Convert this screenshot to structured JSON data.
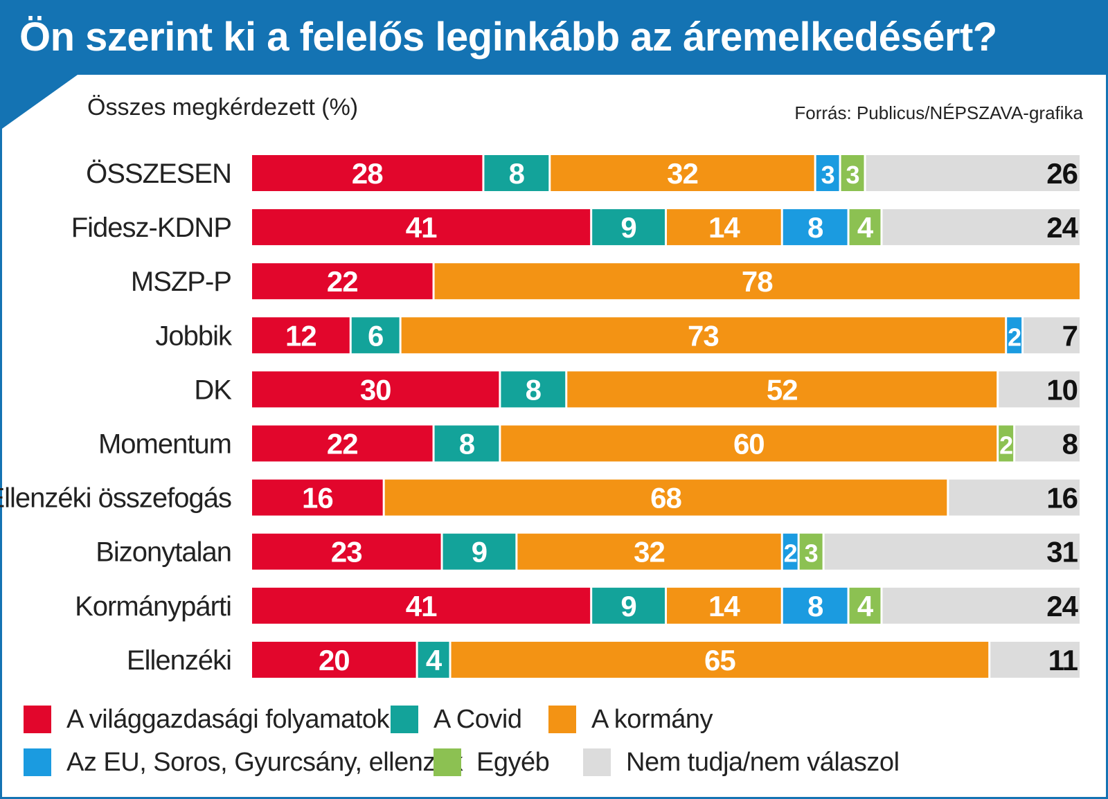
{
  "title": "Ön szerint ki a felelős leginkább az áremelkedésért?",
  "subtitle": "Összes megkérdezett (%)",
  "source": "Forrás: Publicus/NÉPSZAVA-grafika",
  "colors": {
    "title_bar": "#1473b3",
    "world_economy": "#e2062c",
    "covid": "#13a39a",
    "government": "#f39314",
    "eu_soros": "#1b9be0",
    "other": "#8cc152",
    "dont_know": "#dcdcdc"
  },
  "chart_data": {
    "type": "bar",
    "orientation": "horizontal",
    "stacked": true,
    "unit": "%",
    "xlim": [
      0,
      100
    ],
    "grid": false,
    "legend_position": "bottom",
    "categories": [
      "ÖSSZESEN",
      "Fidesz-KDNP",
      "MSZP-P",
      "Jobbik",
      "DK",
      "Momentum",
      "Ellenzéki összefogás",
      "Bizonytalan",
      "Kormánypárti",
      "Ellenzéki"
    ],
    "series": [
      {
        "name": "A világgazdasági folyamatok",
        "color": "#e2062c",
        "values": [
          28,
          41,
          22,
          12,
          30,
          22,
          16,
          23,
          41,
          20
        ]
      },
      {
        "name": "A Covid",
        "color": "#13a39a",
        "values": [
          8,
          9,
          0,
          6,
          8,
          8,
          0,
          9,
          9,
          4
        ]
      },
      {
        "name": "A kormány",
        "color": "#f39314",
        "values": [
          32,
          14,
          78,
          73,
          52,
          60,
          68,
          32,
          14,
          65
        ]
      },
      {
        "name": "Az EU, Soros, Gyurcsány, ellenzék",
        "color": "#1b9be0",
        "values": [
          3,
          8,
          0,
          2,
          0,
          0,
          0,
          2,
          8,
          0
        ]
      },
      {
        "name": "Egyéb",
        "color": "#8cc152",
        "values": [
          3,
          4,
          0,
          0,
          0,
          2,
          0,
          3,
          4,
          0
        ]
      },
      {
        "name": "Nem tudja/nem válaszol",
        "color": "#dcdcdc",
        "values": [
          26,
          24,
          0,
          7,
          10,
          8,
          16,
          31,
          24,
          11
        ]
      }
    ]
  },
  "legend": [
    {
      "label": "A világgazdasági folyamatok",
      "color": "#e2062c"
    },
    {
      "label": "A Covid",
      "color": "#13a39a"
    },
    {
      "label": "A kormány",
      "color": "#f39314"
    },
    {
      "label": "Az EU, Soros, Gyurcsány, ellenzék",
      "color": "#1b9be0"
    },
    {
      "label": "Egyéb",
      "color": "#8cc152"
    },
    {
      "label": "Nem tudja/nem válaszol",
      "color": "#dcdcdc"
    }
  ]
}
